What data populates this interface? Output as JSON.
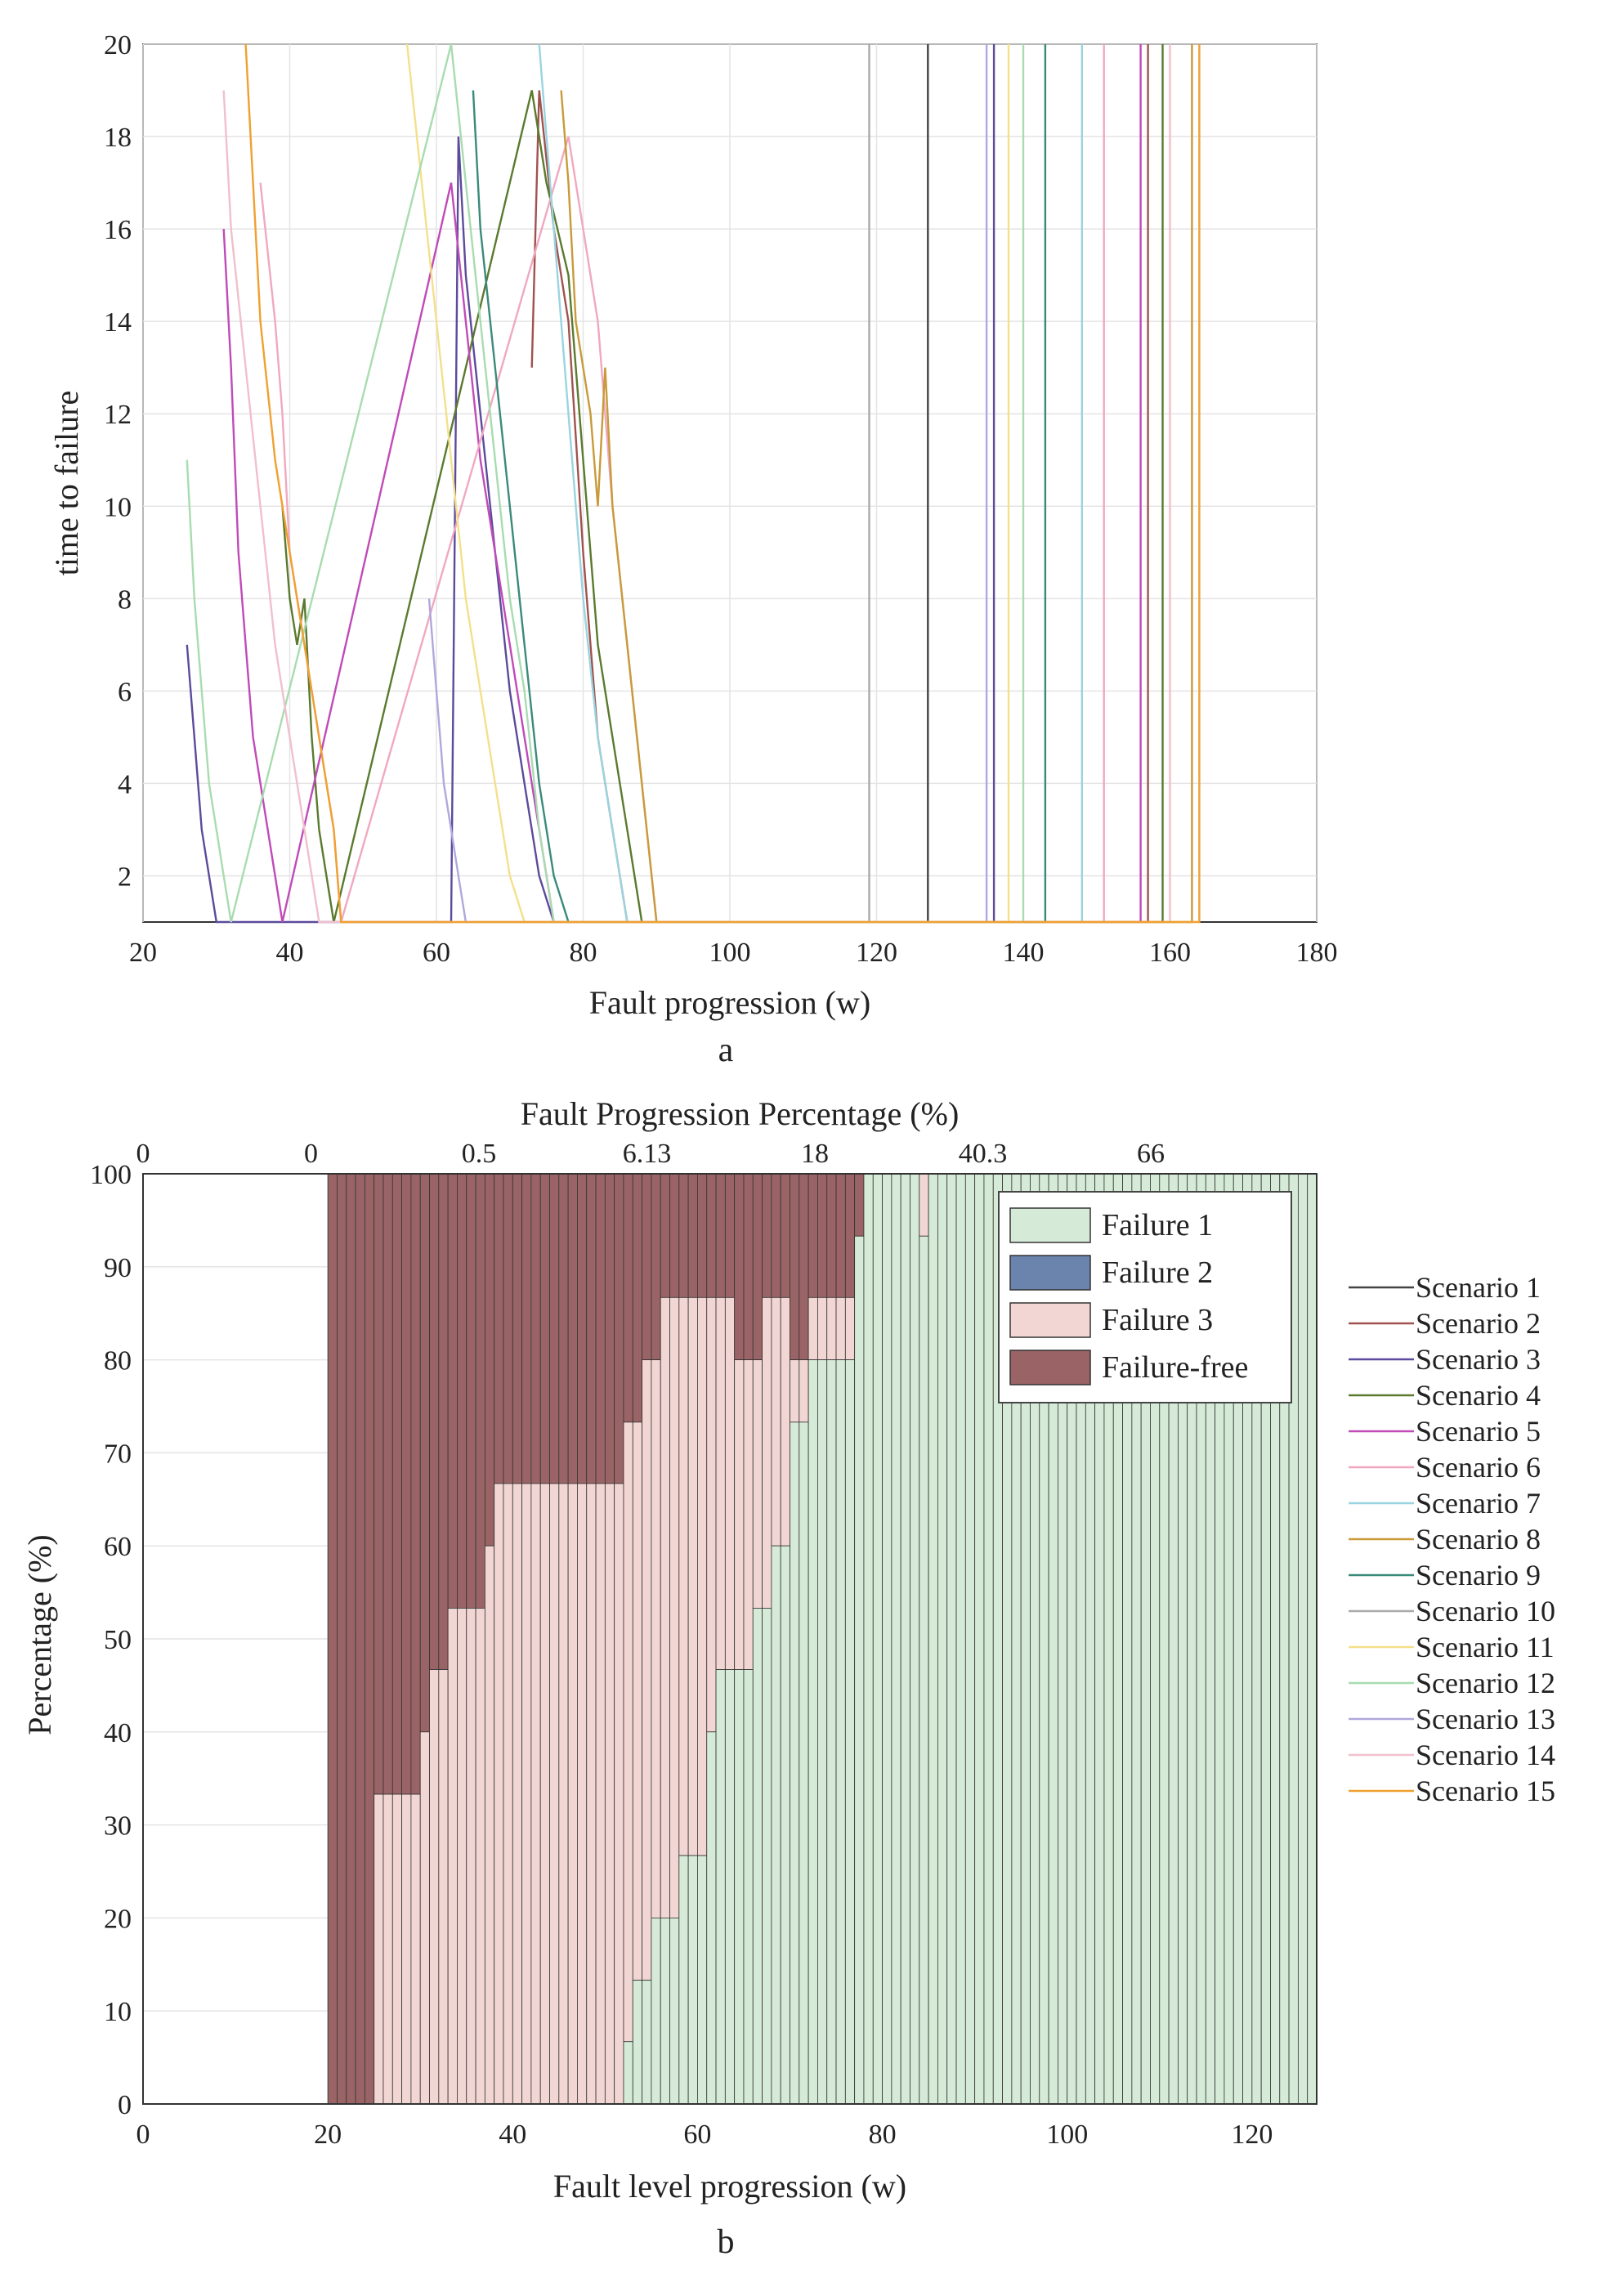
{
  "chart_data": [
    {
      "id": "a",
      "type": "line",
      "caption": "a",
      "xlabel": "Fault progression (w)",
      "ylabel": "time to failure",
      "xlim": [
        20,
        180
      ],
      "ylim": [
        1,
        20
      ],
      "xticks": [
        "20",
        "40",
        "60",
        "80",
        "100",
        "120",
        "140",
        "160",
        "180"
      ],
      "yticks": [
        "2",
        "4",
        "6",
        "8",
        "10",
        "12",
        "14",
        "16",
        "18",
        "20"
      ],
      "grid": true,
      "series": [
        {
          "name": "Scenario 1",
          "color": "#444444",
          "points": [
            [
              127,
              1
            ],
            [
              127,
              20
            ]
          ]
        },
        {
          "name": "Scenario 2",
          "color": "#a0524e",
          "points": [
            [
              73,
              13
            ],
            [
              74,
              19
            ],
            [
              76,
              16
            ],
            [
              78,
              14
            ],
            [
              80,
              9
            ],
            [
              82,
              5
            ],
            [
              84,
              3
            ],
            [
              86,
              1
            ],
            [
              90,
              1
            ],
            [
              127,
              1
            ],
            [
              157,
              1
            ],
            [
              157,
              20
            ]
          ]
        },
        {
          "name": "Scenario 3",
          "color": "#5c4a9c",
          "points": [
            [
              26,
              7
            ],
            [
              27,
              5
            ],
            [
              28,
              3
            ],
            [
              30,
              1
            ],
            [
              62,
              1
            ],
            [
              63,
              18
            ],
            [
              64,
              15
            ],
            [
              66,
              12
            ],
            [
              68,
              9
            ],
            [
              70,
              6
            ],
            [
              72,
              4
            ],
            [
              74,
              2
            ],
            [
              76,
              1
            ],
            [
              136,
              1
            ],
            [
              136,
              20
            ]
          ]
        },
        {
          "name": "Scenario 4",
          "color": "#5a7a2e",
          "points": [
            [
              39,
              10
            ],
            [
              40,
              8
            ],
            [
              41,
              7
            ],
            [
              42,
              8
            ],
            [
              43,
              5
            ],
            [
              44,
              3
            ],
            [
              45,
              2
            ],
            [
              46,
              1
            ],
            [
              73,
              19
            ],
            [
              75,
              17
            ],
            [
              78,
              15
            ],
            [
              80,
              11
            ],
            [
              81,
              9
            ],
            [
              82,
              7
            ],
            [
              84,
              5
            ],
            [
              86,
              3
            ],
            [
              88,
              1
            ],
            [
              120,
              1
            ],
            [
              159,
              1
            ],
            [
              159,
              20
            ]
          ]
        },
        {
          "name": "Scenario 5",
          "color": "#c04ab8",
          "points": [
            [
              31,
              16
            ],
            [
              32,
              13
            ],
            [
              33,
              9
            ],
            [
              34,
              7
            ],
            [
              35,
              5
            ],
            [
              36,
              4
            ],
            [
              38,
              2
            ],
            [
              39,
              1
            ],
            [
              62,
              17
            ],
            [
              64,
              14
            ],
            [
              66,
              11
            ],
            [
              68,
              9
            ],
            [
              70,
              7
            ],
            [
              72,
              5
            ],
            [
              74,
              3
            ],
            [
              76,
              1
            ],
            [
              156,
              1
            ],
            [
              156,
              20
            ]
          ]
        },
        {
          "name": "Scenario 6",
          "color": "#f0a8c0",
          "points": [
            [
              36,
              17
            ],
            [
              38,
              14
            ],
            [
              39,
              12
            ],
            [
              40,
              9
            ],
            [
              42,
              7
            ],
            [
              44,
              5
            ],
            [
              46,
              3
            ],
            [
              47,
              1
            ],
            [
              78,
              18
            ],
            [
              80,
              16
            ],
            [
              82,
              14
            ],
            [
              84,
              10
            ],
            [
              86,
              7
            ],
            [
              88,
              4
            ],
            [
              90,
              1
            ],
            [
              151,
              1
            ],
            [
              151,
              20
            ]
          ]
        },
        {
          "name": "Scenario 7",
          "color": "#9ad4e0",
          "points": [
            [
              74,
              20
            ],
            [
              75,
              18
            ],
            [
              76,
              16
            ],
            [
              78,
              12
            ],
            [
              80,
              8
            ],
            [
              82,
              5
            ],
            [
              84,
              3
            ],
            [
              86,
              1
            ],
            [
              148,
              1
            ],
            [
              148,
              20
            ]
          ]
        },
        {
          "name": "Scenario 8",
          "color": "#c89a3a",
          "points": [
            [
              77,
              19
            ],
            [
              78,
              17
            ],
            [
              79,
              14
            ],
            [
              80,
              13
            ],
            [
              81,
              12
            ],
            [
              82,
              10
            ],
            [
              83,
              13
            ],
            [
              84,
              10
            ],
            [
              86,
              7
            ],
            [
              88,
              4
            ],
            [
              90,
              1
            ],
            [
              163,
              1
            ],
            [
              163,
              20
            ]
          ]
        },
        {
          "name": "Scenario 9",
          "color": "#3a8a7a",
          "points": [
            [
              65,
              19
            ],
            [
              66,
              16
            ],
            [
              68,
              13
            ],
            [
              70,
              10
            ],
            [
              72,
              7
            ],
            [
              74,
              4
            ],
            [
              76,
              2
            ],
            [
              78,
              1
            ],
            [
              143,
              1
            ],
            [
              143,
              20
            ]
          ]
        },
        {
          "name": "Scenario 10",
          "color": "#aaaaaa",
          "points": [
            [
              119,
              1
            ],
            [
              119,
              20
            ]
          ]
        },
        {
          "name": "Scenario 11",
          "color": "#f4e08a",
          "points": [
            [
              56,
              20
            ],
            [
              58,
              17
            ],
            [
              60,
              14
            ],
            [
              62,
              11
            ],
            [
              64,
              8
            ],
            [
              66,
              6
            ],
            [
              68,
              4
            ],
            [
              70,
              2
            ],
            [
              72,
              1
            ],
            [
              138,
              1
            ],
            [
              138,
              20
            ]
          ]
        },
        {
          "name": "Scenario 12",
          "color": "#a8dcb0",
          "points": [
            [
              26,
              11
            ],
            [
              27,
              8
            ],
            [
              28,
              6
            ],
            [
              29,
              4
            ],
            [
              30,
              3
            ],
            [
              31,
              2
            ],
            [
              32,
              1
            ],
            [
              62,
              20
            ],
            [
              64,
              17
            ],
            [
              66,
              14
            ],
            [
              68,
              11
            ],
            [
              70,
              8
            ],
            [
              72,
              6
            ],
            [
              74,
              3
            ],
            [
              76,
              1
            ],
            [
              140,
              1
            ],
            [
              140,
              20
            ]
          ]
        },
        {
          "name": "Scenario 13",
          "color": "#b0a8dc",
          "points": [
            [
              59,
              8
            ],
            [
              60,
              6
            ],
            [
              61,
              4
            ],
            [
              62,
              3
            ],
            [
              63,
              2
            ],
            [
              64,
              1
            ],
            [
              135,
              1
            ],
            [
              135,
              20
            ]
          ]
        },
        {
          "name": "Scenario 14",
          "color": "#f0c0cc",
          "points": [
            [
              31,
              19
            ],
            [
              32,
              16
            ],
            [
              34,
              13
            ],
            [
              36,
              10
            ],
            [
              38,
              7
            ],
            [
              40,
              5
            ],
            [
              42,
              3
            ],
            [
              44,
              1
            ],
            [
              160,
              1
            ],
            [
              160,
              20
            ]
          ]
        },
        {
          "name": "Scenario 15",
          "color": "#f0a030",
          "points": [
            [
              34,
              20
            ],
            [
              35,
              17
            ],
            [
              36,
              14
            ],
            [
              38,
              11
            ],
            [
              40,
              9
            ],
            [
              42,
              7
            ],
            [
              44,
              5
            ],
            [
              46,
              3
            ],
            [
              47,
              1
            ],
            [
              164,
              1
            ],
            [
              164,
              20
            ]
          ]
        }
      ]
    },
    {
      "id": "b",
      "type": "bar",
      "stacked": true,
      "caption": "b",
      "xlabel": "Fault level progression (w)",
      "x2label": "Fault Progression Percentage (%)",
      "ylabel": "Percentage (%)",
      "xlim": [
        0,
        127
      ],
      "ylim": [
        0,
        100
      ],
      "xticks": [
        "0",
        "20",
        "40",
        "60",
        "80",
        "100",
        "120"
      ],
      "x2ticks": [
        "0",
        "0",
        "0.5",
        "6.13",
        "18",
        "40.3",
        "66"
      ],
      "yticks": [
        "0",
        "10",
        "20",
        "30",
        "40",
        "50",
        "60",
        "70",
        "80",
        "90",
        "100"
      ],
      "legend": {
        "placement": "top-right",
        "entries": [
          {
            "name": "Failure 1",
            "color": "#d5ead7"
          },
          {
            "name": "Failure 2",
            "color": "#6a84ad"
          },
          {
            "name": "Failure 3",
            "color": "#f1d6d3"
          },
          {
            "name": "Failure-free",
            "color": "#9a6466"
          }
        ]
      },
      "scenario_legend": [
        "Scenario 1",
        "Scenario 2",
        "Scenario 3",
        "Scenario 4",
        "Scenario 5",
        "Scenario 6",
        "Scenario 7",
        "Scenario 8",
        "Scenario 9",
        "Scenario 10",
        "Scenario 11",
        "Scenario 12",
        "Scenario 13",
        "Scenario 14",
        "Scenario 15"
      ],
      "scenario_colors": [
        "#444444",
        "#a0524e",
        "#5c4a9c",
        "#5a7a2e",
        "#c04ab8",
        "#f0a8c0",
        "#9ad4e0",
        "#c89a3a",
        "#3a8a7a",
        "#aaaaaa",
        "#f4e08a",
        "#a8dcb0",
        "#b0a8dc",
        "#f0c0cc",
        "#f0a030"
      ],
      "failure1_steps": [
        [
          0,
          0
        ],
        [
          52,
          6.7
        ],
        [
          53,
          13.3
        ],
        [
          55,
          20
        ],
        [
          58,
          26.7
        ],
        [
          61,
          40
        ],
        [
          62,
          46.7
        ],
        [
          66,
          53.3
        ],
        [
          68,
          60
        ],
        [
          70,
          73.3
        ],
        [
          72,
          80
        ],
        [
          77,
          93.3
        ],
        [
          78,
          100
        ],
        [
          84,
          93.3
        ],
        [
          85,
          100
        ]
      ],
      "failure3_steps": [
        [
          0,
          0
        ],
        [
          25,
          33.3
        ],
        [
          30,
          40
        ],
        [
          31,
          46.7
        ],
        [
          33,
          53.3
        ],
        [
          37,
          60
        ],
        [
          38,
          66.7
        ],
        [
          52,
          73.3
        ],
        [
          54,
          80
        ],
        [
          56,
          86.7
        ],
        [
          64,
          80
        ],
        [
          67,
          86.7
        ],
        [
          70,
          80
        ],
        [
          72,
          86.7
        ],
        [
          78,
          100
        ],
        [
          127,
          100
        ]
      ]
    }
  ]
}
